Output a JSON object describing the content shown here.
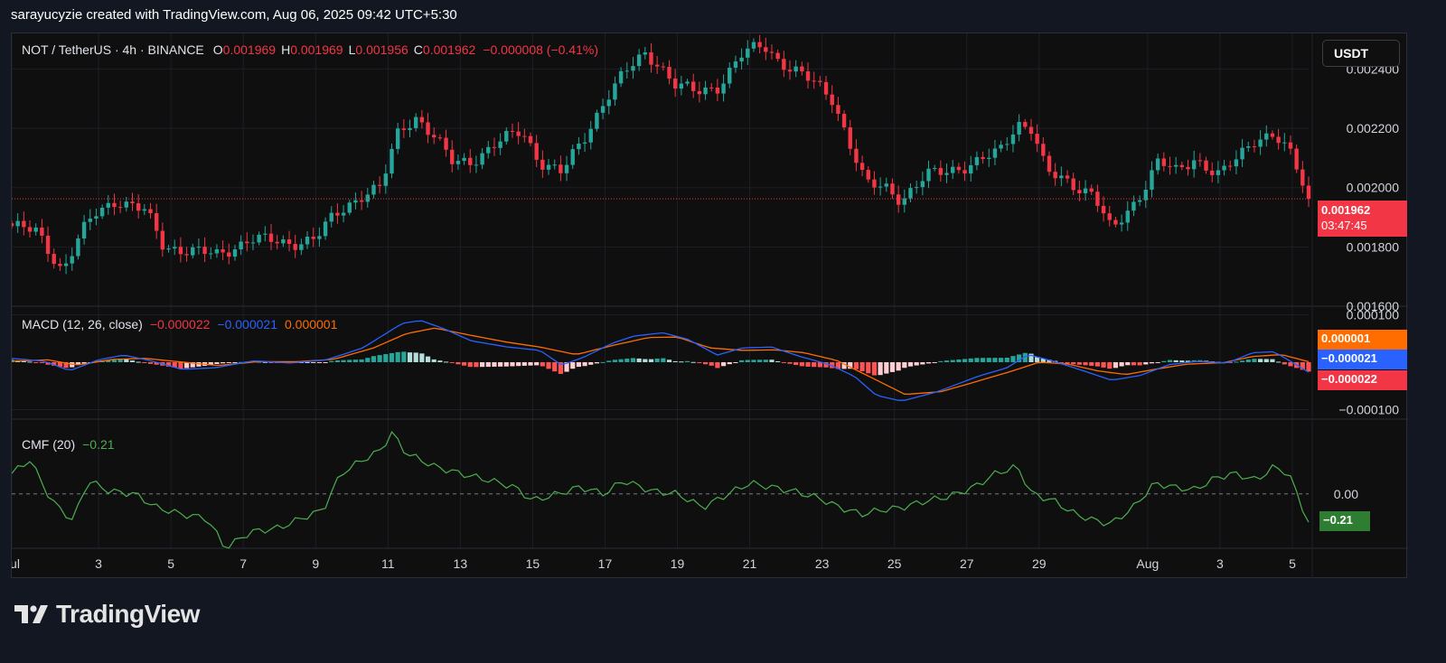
{
  "header": {
    "credit": "sarayucyzie created with TradingView.com, Aug 06, 2025 09:42 UTC+5:30"
  },
  "symbol_legend": {
    "symbol": "NOT / TetherUS · 4h · BINANCE",
    "open_label": "O",
    "open": "0.001969",
    "high_label": "H",
    "high": "0.001969",
    "low_label": "L",
    "low": "0.001956",
    "close_label": "C",
    "close": "0.001962",
    "change": "−0.000008 (−0.41%)"
  },
  "currency_button": "USDT",
  "price_badge": {
    "price": "0.001962",
    "countdown": "03:47:45"
  },
  "macd_legend": {
    "name": "MACD (12, 26, close)",
    "hist": "−0.000022",
    "macd": "−0.000021",
    "signal": "0.000001"
  },
  "macd_badges": {
    "signal": "0.000001",
    "macd": "−0.000021",
    "hist": "−0.000022"
  },
  "cmf_legend": {
    "name": "CMF (20)",
    "value": "−0.21"
  },
  "cmf_badge": "−0.21",
  "brand": {
    "name": "TradingView"
  },
  "colors": {
    "up": "#26a69a",
    "down": "#f23645",
    "macd": "#2962ff",
    "signal": "#ff6d00",
    "cmf": "#4caf50",
    "background": "#0f0f0f"
  },
  "chart_data": [
    {
      "type": "candlestick",
      "title": "NOT / TetherUS · 4h · BINANCE",
      "y_ticks": [
        "0.002400",
        "0.002200",
        "0.002000",
        "0.001800",
        "0.001600"
      ],
      "ylim": [
        0.0016,
        0.00252
      ],
      "x_ticks": [
        "Jul",
        "3",
        "5",
        "7",
        "9",
        "11",
        "13",
        "15",
        "17",
        "19",
        "21",
        "23",
        "25",
        "27",
        "29",
        "Aug",
        "3",
        "5"
      ],
      "x_range_days": [
        0.6,
        36.45
      ],
      "price_anchors": [
        [
          0.6,
          0.00187
        ],
        [
          1.3,
          0.00185
        ],
        [
          2.0,
          0.00172
        ],
        [
          2.5,
          0.00184
        ],
        [
          2.9,
          0.00191
        ],
        [
          3.5,
          0.00196
        ],
        [
          4.3,
          0.00192
        ],
        [
          4.8,
          0.0018
        ],
        [
          5.5,
          0.00179
        ],
        [
          6.3,
          0.00177
        ],
        [
          7.2,
          0.00183
        ],
        [
          8.2,
          0.00181
        ],
        [
          9.0,
          0.00183
        ],
        [
          9.5,
          0.0019
        ],
        [
          10.3,
          0.00198
        ],
        [
          10.8,
          0.002
        ],
        [
          11.3,
          0.00219
        ],
        [
          11.8,
          0.00224
        ],
        [
          12.3,
          0.00217
        ],
        [
          12.8,
          0.00208
        ],
        [
          13.3,
          0.00209
        ],
        [
          14.0,
          0.00215
        ],
        [
          14.7,
          0.00219
        ],
        [
          15.2,
          0.00209
        ],
        [
          15.8,
          0.00205
        ],
        [
          16.4,
          0.00216
        ],
        [
          17.0,
          0.0023
        ],
        [
          17.5,
          0.00238
        ],
        [
          18.1,
          0.00245
        ],
        [
          18.5,
          0.00242
        ],
        [
          18.9,
          0.00235
        ],
        [
          19.5,
          0.00232
        ],
        [
          20.1,
          0.00234
        ],
        [
          20.8,
          0.00245
        ],
        [
          21.4,
          0.00248
        ],
        [
          21.8,
          0.00243
        ],
        [
          22.3,
          0.00239
        ],
        [
          22.8,
          0.00235
        ],
        [
          23.3,
          0.0023
        ],
        [
          23.7,
          0.00217
        ],
        [
          24.2,
          0.00201
        ],
        [
          24.8,
          0.002
        ],
        [
          25.2,
          0.00196
        ],
        [
          25.9,
          0.00204
        ],
        [
          26.5,
          0.00206
        ],
        [
          27.2,
          0.00208
        ],
        [
          27.9,
          0.00212
        ],
        [
          28.4,
          0.00222
        ],
        [
          28.8,
          0.0022
        ],
        [
          29.2,
          0.00205
        ],
        [
          29.8,
          0.00202
        ],
        [
          30.5,
          0.00198
        ],
        [
          31.0,
          0.00185
        ],
        [
          31.7,
          0.00196
        ],
        [
          32.3,
          0.00209
        ],
        [
          32.8,
          0.00205
        ],
        [
          33.3,
          0.0021
        ],
        [
          34.0,
          0.00204
        ],
        [
          34.5,
          0.0021
        ],
        [
          35.0,
          0.00217
        ],
        [
          35.5,
          0.00218
        ],
        [
          36.0,
          0.0021
        ],
        [
          36.45,
          0.001962
        ]
      ],
      "last_price": 0.001962
    },
    {
      "type": "line",
      "title": "MACD (12, 26, close)",
      "y_ticks": [
        "0.000100",
        "−0.000100"
      ],
      "ylim": [
        -0.00012,
        0.000118
      ],
      "series": [
        {
          "name": "MACD",
          "color": "#2962ff",
          "points": [
            [
              0.6,
              8e-06
            ],
            [
              1.5,
              2e-06
            ],
            [
              2.2,
              -1.8e-05
            ],
            [
              3.0,
              5e-06
            ],
            [
              3.7,
              1.5e-05
            ],
            [
              4.5,
              2e-06
            ],
            [
              5.3,
              -1.5e-05
            ],
            [
              6.2,
              -1.2e-05
            ],
            [
              7.3,
              3e-06
            ],
            [
              8.3,
              -2e-06
            ],
            [
              9.3,
              5e-06
            ],
            [
              10.3,
              3e-05
            ],
            [
              11.4,
              8.2e-05
            ],
            [
              11.9,
              8.8e-05
            ],
            [
              12.5,
              7.2e-05
            ],
            [
              13.3,
              4.5e-05
            ],
            [
              14.3,
              3.2e-05
            ],
            [
              15.2,
              2.5e-05
            ],
            [
              15.8,
              -6e-06
            ],
            [
              16.4,
              1e-05
            ],
            [
              17.2,
              4e-05
            ],
            [
              17.8,
              5.5e-05
            ],
            [
              18.6,
              6.2e-05
            ],
            [
              19.3,
              4.8e-05
            ],
            [
              20.1,
              1.5e-05
            ],
            [
              20.8,
              3e-05
            ],
            [
              21.6,
              3.2e-05
            ],
            [
              22.4,
              1.2e-05
            ],
            [
              23.2,
              -5e-06
            ],
            [
              23.9,
              -3e-05
            ],
            [
              24.5,
              -7e-05
            ],
            [
              25.2,
              -8.2e-05
            ],
            [
              26.2,
              -6.2e-05
            ],
            [
              27.3,
              -3e-05
            ],
            [
              28.1,
              -1.2e-05
            ],
            [
              28.7,
              1.6e-05
            ],
            [
              29.4,
              2e-06
            ],
            [
              30.3,
              -2e-05
            ],
            [
              31.0,
              -3.8e-05
            ],
            [
              31.8,
              -2.8e-05
            ],
            [
              32.6,
              -5e-06
            ],
            [
              33.4,
              2e-06
            ],
            [
              34.2,
              -2e-06
            ],
            [
              34.9,
              2e-05
            ],
            [
              35.5,
              2.2e-05
            ],
            [
              36.45,
              -2.1e-05
            ]
          ]
        },
        {
          "name": "Signal",
          "color": "#ff6d00",
          "points": [
            [
              0.6,
              2e-06
            ],
            [
              1.6,
              5e-06
            ],
            [
              2.4,
              -6e-06
            ],
            [
              3.4,
              6e-06
            ],
            [
              4.3,
              8e-06
            ],
            [
              5.2,
              1e-06
            ],
            [
              6.3,
              -7e-06
            ],
            [
              7.4,
              1e-06
            ],
            [
              8.5,
              1e-06
            ],
            [
              9.5,
              6e-06
            ],
            [
              10.6,
              3e-05
            ],
            [
              11.5,
              6e-05
            ],
            [
              12.3,
              7.2e-05
            ],
            [
              13.2,
              5.8e-05
            ],
            [
              14.3,
              4.2e-05
            ],
            [
              15.2,
              3.2e-05
            ],
            [
              16.2,
              1.6e-05
            ],
            [
              17.2,
              3.5e-05
            ],
            [
              18.2,
              5.2e-05
            ],
            [
              19.0,
              5.3e-05
            ],
            [
              19.9,
              3e-05
            ],
            [
              20.8,
              2.5e-05
            ],
            [
              21.7,
              2.6e-05
            ],
            [
              22.5,
              2e-05
            ],
            [
              23.4,
              4e-06
            ],
            [
              24.3,
              -3e-05
            ],
            [
              25.3,
              -6.8e-05
            ],
            [
              26.3,
              -6.2e-05
            ],
            [
              27.3,
              -4e-05
            ],
            [
              28.2,
              -2e-05
            ],
            [
              29.0,
              0.0
            ],
            [
              29.8,
              -4e-06
            ],
            [
              30.6,
              -1.8e-05
            ],
            [
              31.4,
              -2.6e-05
            ],
            [
              32.2,
              -1.5e-05
            ],
            [
              33.1,
              -4e-06
            ],
            [
              34.1,
              -1e-06
            ],
            [
              34.9,
              1.2e-05
            ],
            [
              35.7,
              1.6e-05
            ],
            [
              36.45,
              1e-06
            ]
          ]
        }
      ],
      "histogram": "difference of MACD and Signal, green above zero, red below zero"
    },
    {
      "type": "line",
      "title": "CMF (20)",
      "y_ticks": [
        "0.00"
      ],
      "ylim": [
        -0.4,
        0.55
      ],
      "series": [
        {
          "name": "CMF",
          "color": "#4caf50",
          "points": [
            [
              0.6,
              0.15
            ],
            [
              1.1,
              0.25
            ],
            [
              1.7,
              -0.05
            ],
            [
              2.3,
              -0.2
            ],
            [
              2.7,
              0.1
            ],
            [
              3.3,
              0.02
            ],
            [
              4.0,
              0.0
            ],
            [
              4.6,
              -0.1
            ],
            [
              5.3,
              -0.15
            ],
            [
              6.0,
              -0.18
            ],
            [
              6.5,
              -0.4
            ],
            [
              7.2,
              -0.28
            ],
            [
              8.0,
              -0.25
            ],
            [
              8.6,
              -0.18
            ],
            [
              9.2,
              -0.12
            ],
            [
              9.7,
              0.15
            ],
            [
              10.3,
              0.25
            ],
            [
              10.8,
              0.32
            ],
            [
              11.1,
              0.45
            ],
            [
              11.5,
              0.3
            ],
            [
              12.3,
              0.2
            ],
            [
              13.0,
              0.15
            ],
            [
              13.8,
              0.1
            ],
            [
              14.5,
              0.05
            ],
            [
              15.0,
              -0.05
            ],
            [
              15.7,
              0.0
            ],
            [
              16.3,
              0.05
            ],
            [
              17.0,
              0.0
            ],
            [
              17.5,
              0.1
            ],
            [
              18.3,
              0.02
            ],
            [
              19.0,
              0.0
            ],
            [
              19.7,
              -0.1
            ],
            [
              20.4,
              0.0
            ],
            [
              21.0,
              0.08
            ],
            [
              21.6,
              0.05
            ],
            [
              22.2,
              0.02
            ],
            [
              22.9,
              -0.03
            ],
            [
              23.5,
              -0.1
            ],
            [
              24.1,
              -0.15
            ],
            [
              24.6,
              -0.12
            ],
            [
              25.2,
              -0.1
            ],
            [
              25.9,
              -0.05
            ],
            [
              26.5,
              -0.02
            ],
            [
              27.2,
              0.05
            ],
            [
              27.8,
              0.15
            ],
            [
              28.4,
              0.2
            ],
            [
              28.8,
              0.0
            ],
            [
              29.4,
              -0.05
            ],
            [
              30.0,
              -0.15
            ],
            [
              30.6,
              -0.2
            ],
            [
              31.0,
              -0.22
            ],
            [
              31.6,
              -0.1
            ],
            [
              32.2,
              0.08
            ],
            [
              32.7,
              0.05
            ],
            [
              33.3,
              0.03
            ],
            [
              33.9,
              0.12
            ],
            [
              34.4,
              0.15
            ],
            [
              35.0,
              0.1
            ],
            [
              35.5,
              0.2
            ],
            [
              35.9,
              0.15
            ],
            [
              36.2,
              -0.05
            ],
            [
              36.45,
              -0.21
            ]
          ]
        }
      ]
    }
  ]
}
